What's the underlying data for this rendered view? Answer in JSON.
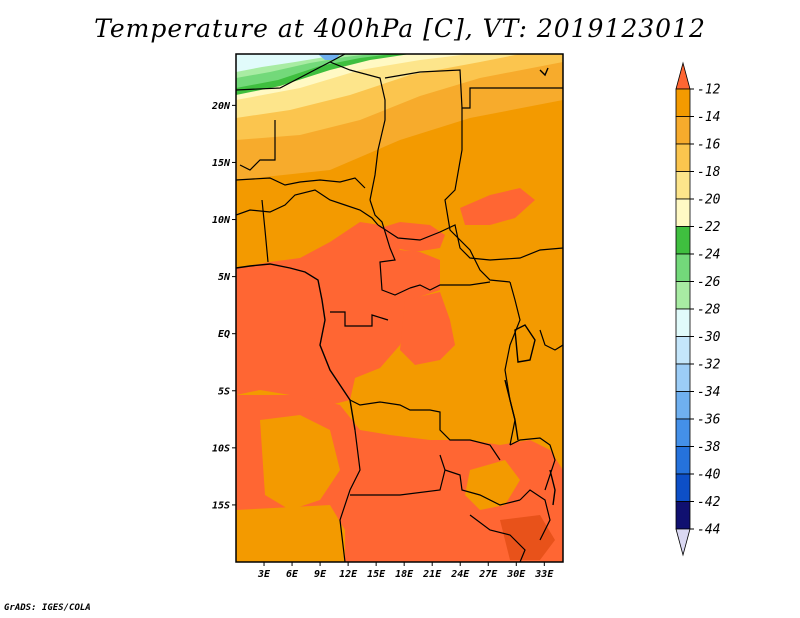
{
  "title": "Temperature at 400hPa [C], VT: 2019123012",
  "credit": "GrADS: IGES/COLA",
  "map": {
    "region": "Central Africa",
    "lat_labels": [
      "20N",
      "15N",
      "10N",
      "5N",
      "EQ",
      "5S",
      "10S",
      "15S"
    ],
    "lat_values": [
      20,
      15,
      10,
      5,
      0,
      -5,
      -10,
      -15
    ],
    "lon_labels": [
      "3E",
      "6E",
      "9E",
      "12E",
      "15E",
      "18E",
      "21E",
      "24E",
      "27E",
      "30E",
      "33E"
    ],
    "lon_values": [
      3,
      6,
      9,
      12,
      15,
      18,
      21,
      24,
      27,
      30,
      33
    ],
    "lat_range": [
      -20,
      24.5
    ],
    "lon_range": [
      0,
      35
    ]
  },
  "colorbar": {
    "labels": [
      "-12",
      "-14",
      "-16",
      "-18",
      "-20",
      "-22",
      "-24",
      "-26",
      "-28",
      "-30",
      "-32",
      "-34",
      "-36",
      "-38",
      "-40",
      "-42",
      "-44"
    ],
    "colors": [
      "#ff6633",
      "#f39a00",
      "#f7ab2c",
      "#fbc54e",
      "#fde58b",
      "#fff9c4",
      "#3fbf3f",
      "#73d97a",
      "#a8eca3",
      "#e1fbfb",
      "#c4e6fb",
      "#9ccdf7",
      "#6fb0f0",
      "#4490e8",
      "#2572dc",
      "#0d4fc7",
      "#101070",
      "#dad8f2"
    ]
  }
}
